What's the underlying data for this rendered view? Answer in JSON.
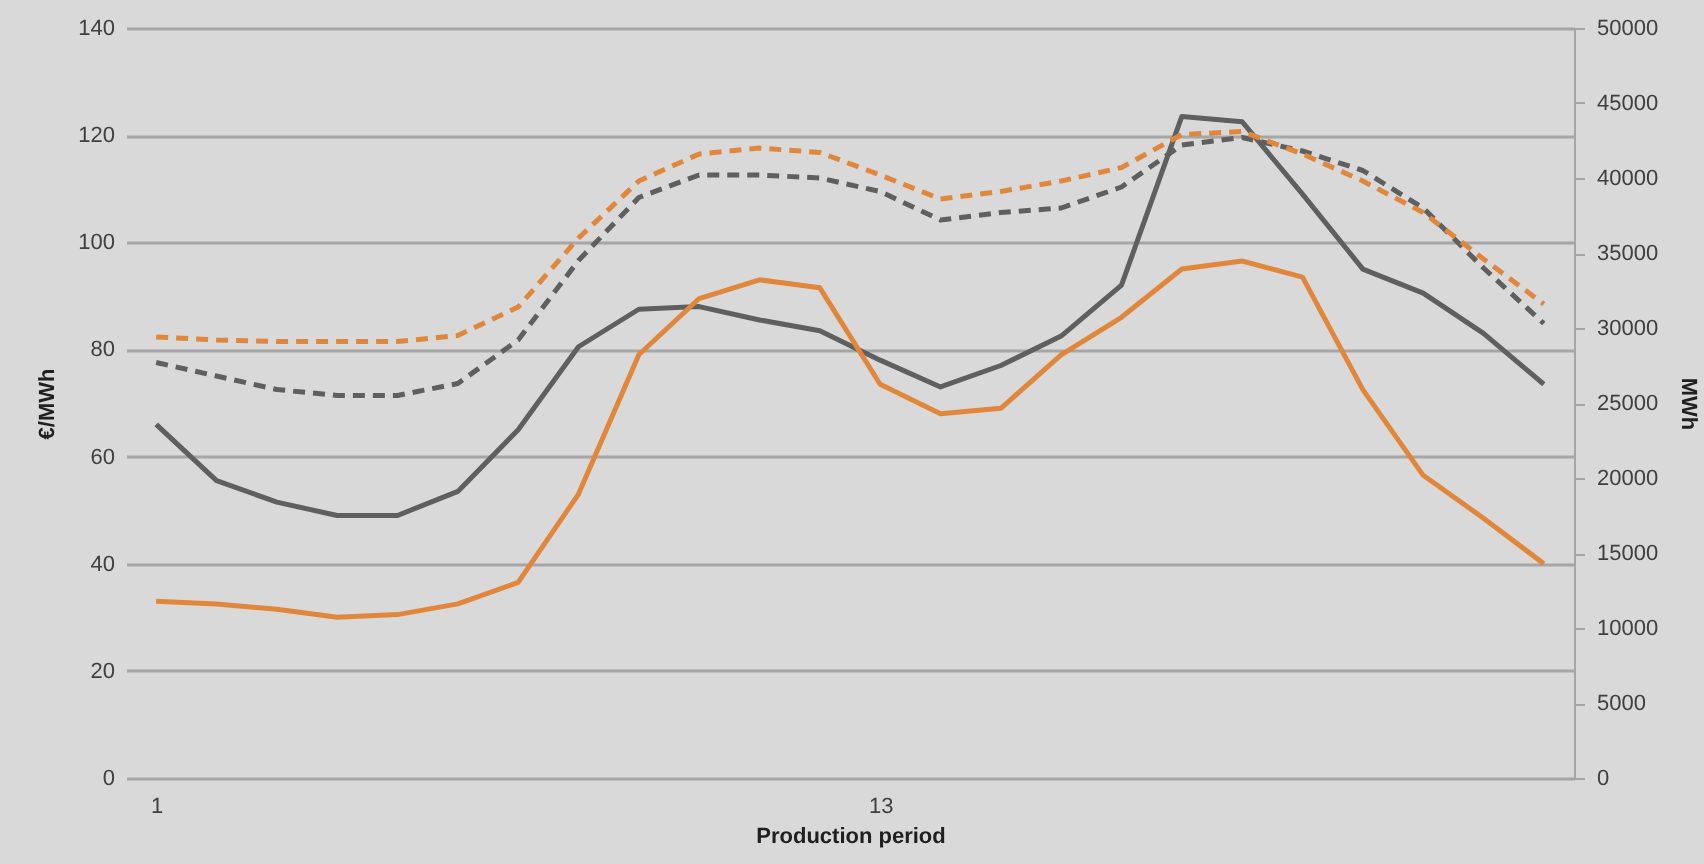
{
  "chart_data": {
    "type": "line",
    "xlabel": "Production period",
    "ylabel": "€/MWh",
    "y2label": "MWh",
    "categories": [
      "1",
      null,
      null,
      null,
      null,
      null,
      null,
      null,
      null,
      null,
      null,
      null,
      "13",
      null,
      null,
      null,
      null,
      null,
      null,
      null,
      null,
      null,
      null,
      null
    ],
    "ylim": [
      0,
      140
    ],
    "yticks": [
      0,
      20,
      40,
      60,
      80,
      100,
      120,
      140
    ],
    "y2lim": [
      0,
      50000
    ],
    "y2ticks": [
      0,
      5000,
      10000,
      15000,
      20000,
      25000,
      30000,
      35000,
      40000,
      45000,
      50000
    ],
    "grid": "y",
    "marker": "none",
    "series": [
      {
        "color": "#5f5f5f",
        "line_style": "solid",
        "values": [
          66,
          55.5,
          51.5,
          49,
          49,
          53.5,
          65,
          80.5,
          87.5,
          88,
          85.5,
          83.5,
          78,
          73,
          77,
          82.5,
          92,
          123.5,
          122.5,
          109,
          95,
          90.5,
          83,
          73.5
        ]
      },
      {
        "color": "#e0873c",
        "line_style": "solid",
        "values": [
          33,
          32.5,
          31.5,
          30,
          30.5,
          32.5,
          36.5,
          53,
          79,
          89.5,
          93,
          91.5,
          73.5,
          68,
          69,
          79,
          86,
          95,
          96.5,
          93.5,
          72.5,
          56.5,
          48.5,
          40
        ]
      },
      {
        "color": "#5f5f5f",
        "line_style": "dashed",
        "axis": "y2",
        "values": [
          27700,
          26800,
          25900,
          25500,
          25500,
          26300,
          29200,
          34500,
          38700,
          40200,
          40200,
          40000,
          39100,
          37200,
          37700,
          38000,
          39400,
          42200,
          42700,
          41800,
          40500,
          38000,
          34000,
          30300
        ]
      },
      {
        "color": "#e0873c",
        "line_style": "dashed",
        "axis": "y2",
        "values": [
          29400,
          29200,
          29100,
          29100,
          29100,
          29500,
          31400,
          36000,
          39800,
          41600,
          42000,
          41700,
          40200,
          38600,
          39100,
          39800,
          40700,
          42900,
          43100,
          41600,
          39800,
          37700,
          34600,
          31600
        ]
      }
    ]
  }
}
